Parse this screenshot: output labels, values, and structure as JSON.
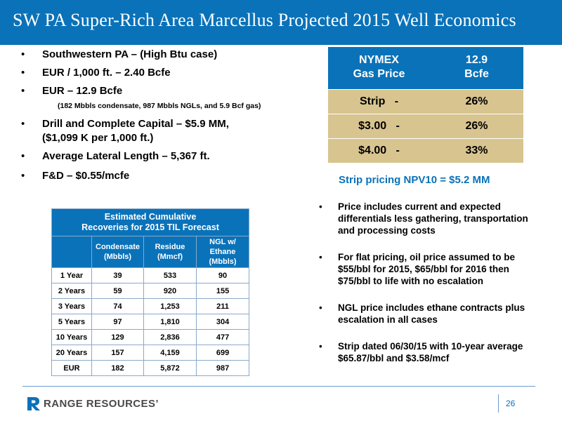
{
  "title": "SW PA Super-Rich Area Marcellus Projected 2015 Well Economics",
  "left_bullets": [
    "Southwestern PA – (High Btu case)",
    "EUR / 1,000 ft. – 2.40 Bcfe",
    "EUR – 12.9 Bcfe",
    "(182 Mbbls condensate, 987 Mbbls NGLs, and 5.9 Bcf gas)",
    "Drill and Complete Capital – $5.9 MM,",
    "($1,099 K per 1,000 ft.)",
    "Average Lateral Length – 5,367 ft.",
    "F&D – $0.55/mcfe"
  ],
  "bullet_char": "•",
  "cum_table": {
    "title_line1": "Estimated Cumulative",
    "title_line2": "Recoveries for 2015 TIL Forecast",
    "col1_line1": "Condensate",
    "col1_line2": "(Mbbls)",
    "col2_line1": "Residue",
    "col2_line2": "(Mmcf)",
    "col3_line1": "NGL w/",
    "col3_line2": "Ethane",
    "col3_line3": "(Mbbls)",
    "rows": [
      [
        "1 Year",
        "39",
        "533",
        "90"
      ],
      [
        "2 Years",
        "59",
        "920",
        "155"
      ],
      [
        "3 Years",
        "74",
        "1,253",
        "211"
      ],
      [
        "5 Years",
        "97",
        "1,810",
        "304"
      ],
      [
        "10 Years",
        "129",
        "2,836",
        "477"
      ],
      [
        "20 Years",
        "157",
        "4,159",
        "699"
      ],
      [
        "EUR",
        "182",
        "5,872",
        "987"
      ]
    ]
  },
  "nymex_table": {
    "h1_line1": "NYMEX",
    "h1_line2": "Gas Price",
    "h2_line1": "12.9",
    "h2_line2": "Bcfe",
    "rows": [
      [
        "Strip   -",
        "26%"
      ],
      [
        "$3.00   -",
        "26%"
      ],
      [
        "$4.00   -",
        "33%"
      ]
    ]
  },
  "npv_text": "Strip pricing NPV10 = $5.2 MM",
  "right_bullets": [
    "Price includes current and expected differentials less gathering, transportation and processing costs",
    "For flat pricing, oil price assumed to be $55/bbl for 2015, $65/bbl for 2016 then $75/bbl to life with no escalation",
    "NGL price includes ethane contracts plus escalation in all cases",
    "Strip dated 06/30/15 with 10-year average $65.87/bbl and $3.58/mcf"
  ],
  "footer": {
    "logo_text": "RANGE RESOURCES’",
    "page_number": "26"
  },
  "colors": {
    "brand_blue": "#0a72b9",
    "table_tan": "#d8c48f"
  }
}
